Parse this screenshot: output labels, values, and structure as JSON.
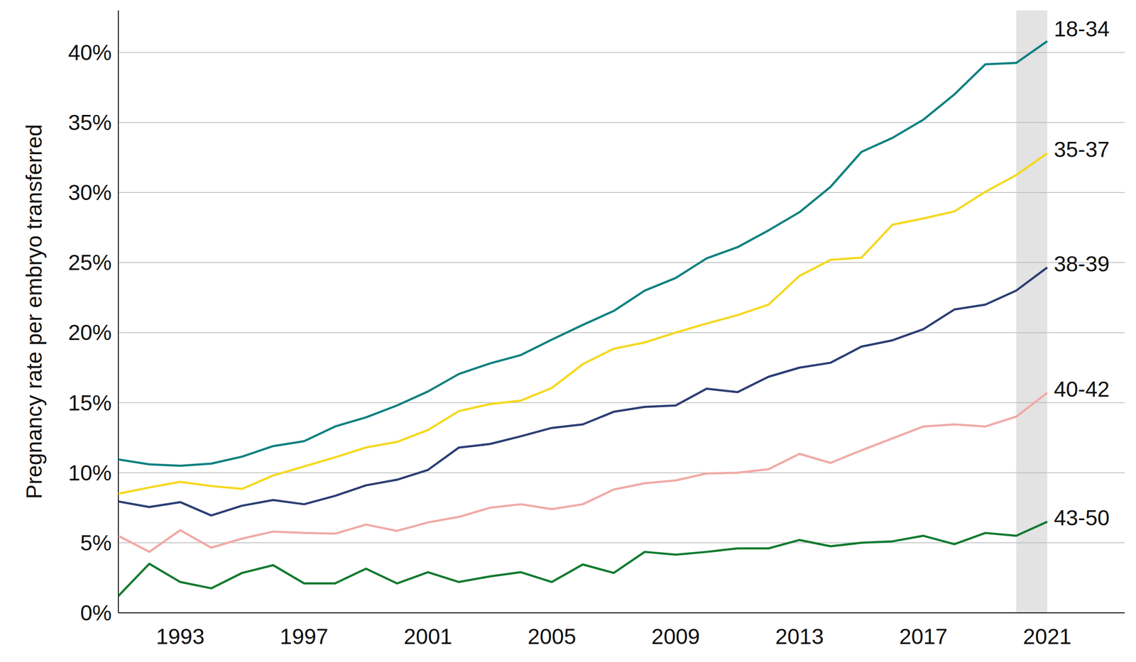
{
  "chart_data": {
    "type": "line",
    "y_label": "Pregnancy rate per embryo transferred",
    "x": [
      1991,
      1992,
      1993,
      1994,
      1995,
      1996,
      1997,
      1998,
      1999,
      2000,
      2001,
      2002,
      2003,
      2004,
      2005,
      2006,
      2007,
      2008,
      2009,
      2010,
      2011,
      2012,
      2013,
      2014,
      2015,
      2016,
      2017,
      2018,
      2019,
      2020,
      2021
    ],
    "series": [
      {
        "name": "18-34",
        "color": "#0e8080",
        "values": [
          10.95,
          10.6,
          10.5,
          10.65,
          11.15,
          11.9,
          12.25,
          13.3,
          13.95,
          14.8,
          15.8,
          17.05,
          17.8,
          18.4,
          19.5,
          20.55,
          21.55,
          23,
          23.9,
          25.3,
          26.1,
          27.3,
          28.6,
          30.4,
          32.9,
          33.9,
          35.2,
          37,
          39.15,
          39.25,
          40.8
        ]
      },
      {
        "name": "35-37",
        "color": "#f5d81e",
        "values": [
          8.5,
          8.95,
          9.35,
          9.05,
          8.85,
          9.8,
          10.45,
          11.1,
          11.8,
          12.2,
          13.05,
          14.4,
          14.9,
          15.15,
          16.05,
          17.75,
          18.85,
          19.3,
          20,
          20.65,
          21.25,
          22,
          24.05,
          25.2,
          25.35,
          27.7,
          28.15,
          28.65,
          30.05,
          31.25,
          32.8
        ]
      },
      {
        "name": "38-39",
        "color": "#2b3d73",
        "values": [
          7.95,
          7.55,
          7.9,
          6.95,
          7.65,
          8.05,
          7.75,
          8.35,
          9.1,
          9.5,
          10.2,
          11.8,
          12.05,
          12.6,
          13.2,
          13.45,
          14.35,
          14.7,
          14.8,
          16,
          15.75,
          16.85,
          17.5,
          17.85,
          19,
          19.45,
          20.25,
          21.65,
          22,
          23,
          24.65
        ]
      },
      {
        "name": "40-42",
        "color": "#f0aaa5",
        "values": [
          5.5,
          4.35,
          5.9,
          4.65,
          5.3,
          5.8,
          5.7,
          5.65,
          6.3,
          5.85,
          6.45,
          6.85,
          7.5,
          7.75,
          7.4,
          7.75,
          8.8,
          9.25,
          9.45,
          9.95,
          10,
          10.25,
          11.35,
          10.7,
          11.6,
          12.45,
          13.3,
          13.45,
          13.3,
          14,
          15.7
        ]
      },
      {
        "name": "43-50",
        "color": "#117a2e",
        "values": [
          1.2,
          3.5,
          2.2,
          1.75,
          2.85,
          3.4,
          2.1,
          2.1,
          3.15,
          2.1,
          2.9,
          2.2,
          2.6,
          2.9,
          2.2,
          3.45,
          2.85,
          4.35,
          4.15,
          4.35,
          4.6,
          4.6,
          5.2,
          4.75,
          5,
          5.1,
          5.5,
          4.9,
          5.7,
          5.5,
          6.5
        ]
      }
    ],
    "xlim": [
      1991,
      2023.5
    ],
    "xticks": [
      1993,
      1997,
      2001,
      2005,
      2009,
      2013,
      2017,
      2021
    ],
    "ylim": [
      0,
      43
    ],
    "yticks": [
      {
        "value": 0,
        "label": "0%"
      },
      {
        "value": 5,
        "label": "5%"
      },
      {
        "value": 10,
        "label": "10%"
      },
      {
        "value": 15,
        "label": "15%"
      },
      {
        "value": 20,
        "label": "20%"
      },
      {
        "value": 25,
        "label": "25%"
      },
      {
        "value": 30,
        "label": "30%"
      },
      {
        "value": 35,
        "label": "35%"
      },
      {
        "value": 40,
        "label": "40%"
      }
    ],
    "highlight": [
      2020,
      2021
    ],
    "grid": true
  }
}
